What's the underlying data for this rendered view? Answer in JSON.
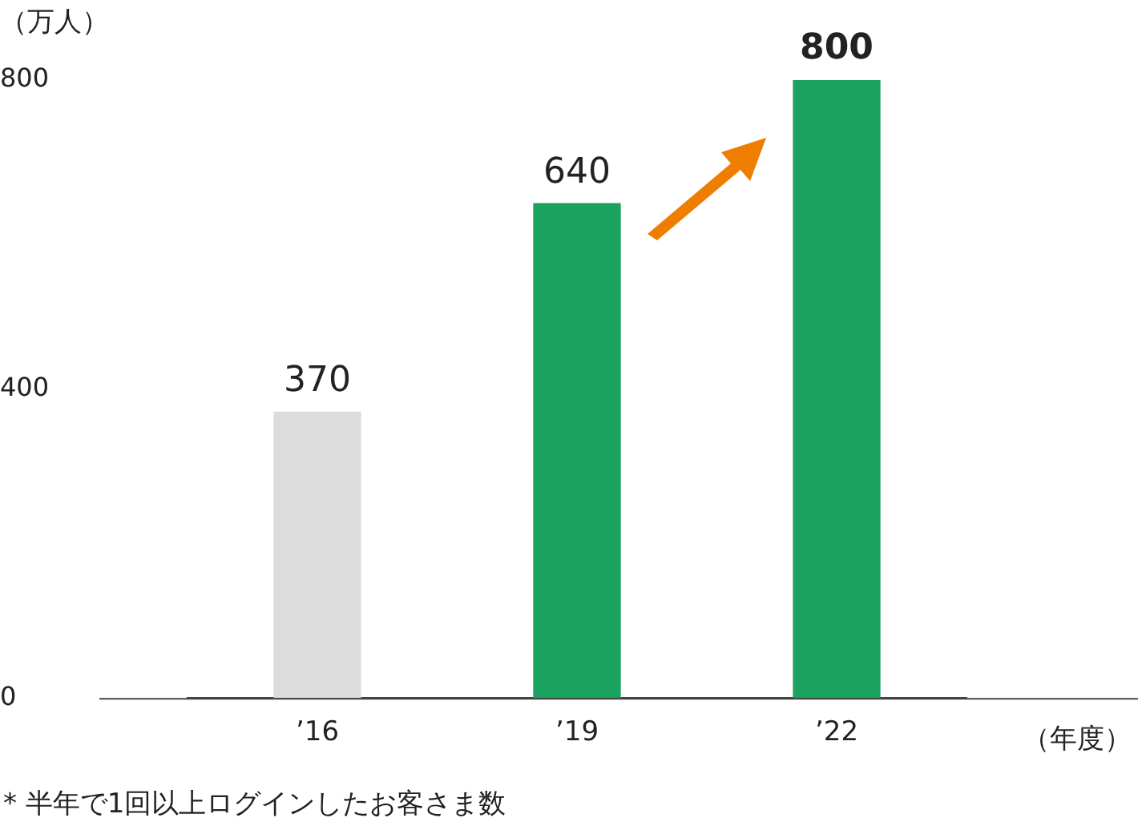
{
  "chart_data": {
    "type": "bar",
    "ylabel": "（万人）",
    "xlabel": "（年度）",
    "categories": [
      "’16",
      "’19",
      "’22"
    ],
    "values": [
      370,
      640,
      800
    ],
    "colors": [
      "#dcdcdc",
      "#1ba25f",
      "#1ba25f"
    ],
    "ylim": [
      0,
      800
    ],
    "yticks": [
      0,
      400,
      800
    ],
    "grid": false,
    "legend": false,
    "data_labels": true,
    "annotations": [
      "* 半年で1回以上ログインしたお客さま数"
    ]
  }
}
